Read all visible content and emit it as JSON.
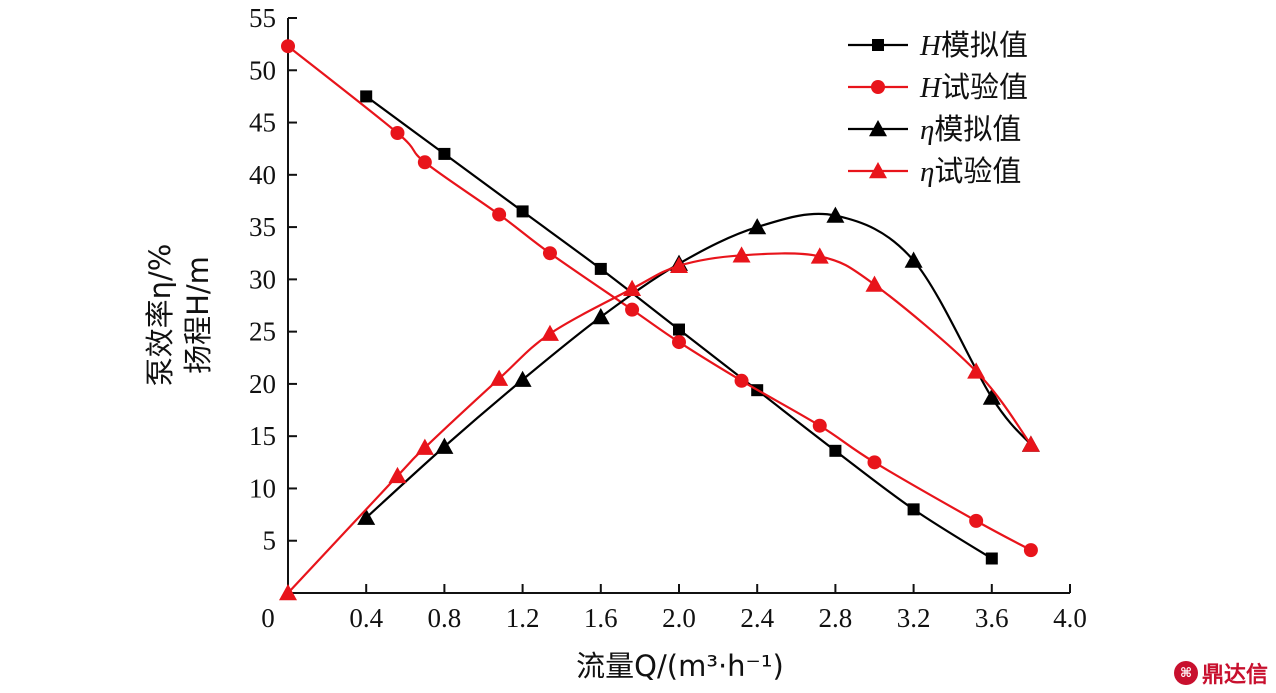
{
  "chart_data": {
    "type": "line",
    "xlabel": "流量Q/(m³·h⁻¹)",
    "ylabel_lines": [
      "泵效率η/%",
      "扬程H/m"
    ],
    "xlim": [
      0,
      4.0
    ],
    "ylim": [
      0,
      55
    ],
    "x_ticks": [
      "0",
      "0.4",
      "0.8",
      "1.2",
      "1.6",
      "2.0",
      "2.4",
      "2.8",
      "3.2",
      "3.6",
      "4.0"
    ],
    "x_tick_values": [
      0,
      0.4,
      0.8,
      1.2,
      1.6,
      2.0,
      2.4,
      2.8,
      3.2,
      3.6,
      4.0
    ],
    "y_ticks": [
      "5",
      "10",
      "15",
      "20",
      "25",
      "30",
      "35",
      "40",
      "45",
      "50",
      "55"
    ],
    "y_tick_values": [
      5,
      10,
      15,
      20,
      25,
      30,
      35,
      40,
      45,
      50,
      55
    ],
    "legend_position": "top-right",
    "grid": false,
    "series": [
      {
        "name": "H模拟值",
        "color": "#000000",
        "marker": "square",
        "x": [
          0.4,
          0.8,
          1.2,
          1.6,
          2.0,
          2.4,
          2.8,
          3.2,
          3.6
        ],
        "y": [
          47.5,
          42.0,
          36.5,
          31.0,
          25.2,
          19.4,
          13.6,
          8.0,
          3.3
        ]
      },
      {
        "name": "H试验值",
        "color": "#e8141b",
        "marker": "circle",
        "x": [
          0.0,
          0.56,
          0.7,
          1.08,
          1.34,
          1.76,
          2.0,
          2.32,
          2.72,
          3.0,
          3.52,
          3.8
        ],
        "y": [
          52.3,
          44.0,
          41.2,
          36.2,
          32.5,
          27.1,
          24.0,
          20.3,
          16.0,
          12.5,
          6.9,
          4.1
        ]
      },
      {
        "name": "η模拟值",
        "color": "#000000",
        "marker": "triangle",
        "x": [
          0.4,
          0.8,
          1.2,
          1.6,
          2.0,
          2.4,
          2.8,
          3.2,
          3.6,
          3.8
        ],
        "y": [
          7.2,
          14.0,
          20.4,
          26.4,
          31.5,
          35.0,
          36.1,
          31.8,
          18.7,
          14.2
        ]
      },
      {
        "name": "η试验值",
        "color": "#e8141b",
        "marker": "triangle",
        "x": [
          0.0,
          0.56,
          0.7,
          1.08,
          1.34,
          1.76,
          2.0,
          2.32,
          2.72,
          3.0,
          3.52,
          3.8
        ],
        "y": [
          0.0,
          11.2,
          13.9,
          20.5,
          24.8,
          29.1,
          31.3,
          32.3,
          32.2,
          29.5,
          21.2,
          14.2
        ]
      }
    ]
  },
  "legend": {
    "items": [
      {
        "sym": "H",
        "text": "模拟值"
      },
      {
        "sym": "H",
        "text": "试验值"
      },
      {
        "sym": "η",
        "text": "模拟值"
      },
      {
        "sym": "η",
        "text": "试验值"
      }
    ]
  },
  "watermark": {
    "text": "鼎达信",
    "logo": "⌘"
  }
}
